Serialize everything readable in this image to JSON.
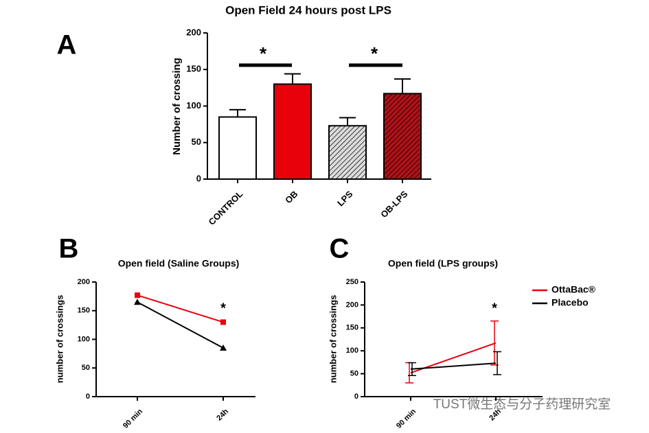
{
  "chart_data": [
    {
      "type": "bar",
      "panel_label": "A",
      "title": "Open Field 24 hours post LPS",
      "y_label": "Number of crossing",
      "categories": [
        "CONTROL",
        "OB",
        "LPS",
        "OB-LPS"
      ],
      "values": [
        85,
        130,
        73,
        117
      ],
      "errors": [
        10,
        14,
        11,
        20
      ],
      "colors": [
        "#ffffff",
        "#e8000b",
        "#dcdcdc",
        "#b01218"
      ],
      "hatch": [
        false,
        false,
        true,
        true
      ],
      "ylim": [
        0,
        200
      ],
      "yticks": [
        0,
        50,
        100,
        150,
        200
      ],
      "annotations": [
        "*",
        "*"
      ]
    },
    {
      "type": "line",
      "panel_label": "B",
      "title": "Open field (Saline Groups)",
      "y_label": "number of crossings",
      "categories": [
        "90 min",
        "24h"
      ],
      "series": [
        {
          "color": "#e8000b",
          "marker": "square",
          "values": [
            177,
            130
          ]
        },
        {
          "color": "#000000",
          "marker": "triangle",
          "values": [
            165,
            85
          ]
        }
      ],
      "ylim": [
        0,
        200
      ],
      "yticks": [
        0,
        50,
        100,
        150,
        200
      ],
      "annotations": [
        "*"
      ]
    },
    {
      "type": "line",
      "panel_label": "C",
      "title": "Open field  (LPS groups)",
      "y_label": "number of crossings",
      "categories": [
        "90 min",
        "24h"
      ],
      "series": [
        {
          "name": "OttaBac®",
          "color": "#e8000b",
          "values": [
            52,
            117
          ],
          "errors": [
            22,
            48
          ]
        },
        {
          "name": "Placebo",
          "color": "#000000",
          "values": [
            60,
            73
          ],
          "errors": [
            14,
            25
          ]
        }
      ],
      "legend": "upper right",
      "ylim": [
        0,
        250
      ],
      "yticks": [
        0,
        50,
        100,
        150,
        200,
        250
      ],
      "annotations": [
        "*"
      ]
    }
  ],
  "watermark": "TUST微生态与分子药理研究室"
}
